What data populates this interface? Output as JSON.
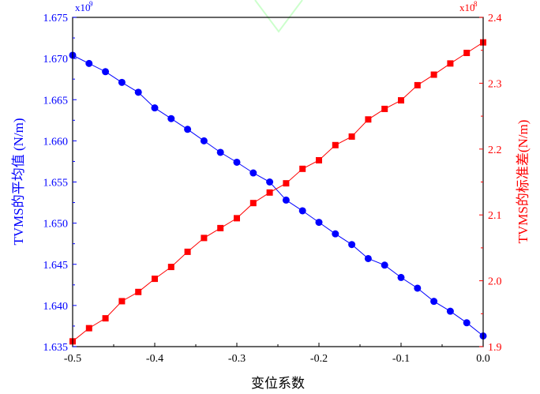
{
  "colors": {
    "left_series": "#0000ff",
    "right_series": "#ff0000",
    "frame": "#000000",
    "background_shape": "#ccffcc"
  },
  "chart_data": {
    "type": "scatter",
    "x": [
      -0.5,
      -0.48,
      -0.46,
      -0.44,
      -0.42,
      -0.4,
      -0.38,
      -0.36,
      -0.34,
      -0.32,
      -0.3,
      -0.28,
      -0.26,
      -0.24,
      -0.22,
      -0.2,
      -0.18,
      -0.16,
      -0.14,
      -0.12,
      -0.1,
      -0.08,
      -0.06,
      -0.04,
      -0.02,
      0.0
    ],
    "xlabel": "变位系数",
    "xlim": [
      -0.5,
      0.0
    ],
    "x_ticks": [
      "-0.5",
      "-0.4",
      "-0.3",
      "-0.2",
      "-0.1",
      "0.0"
    ],
    "y_left": {
      "label": "TVMS的平均值 (N/m)",
      "multiplier": "x10",
      "multiplier_exp": "9",
      "lim": [
        1.635,
        1.675
      ],
      "ticks": [
        "1.635",
        "1.640",
        "1.645",
        "1.650",
        "1.655",
        "1.660",
        "1.665",
        "1.670",
        "1.675"
      ]
    },
    "y_right": {
      "label": "TVMS的标准差(N/m)",
      "multiplier": "x10",
      "multiplier_exp": "8",
      "lim": [
        1.9,
        2.4
      ],
      "ticks": [
        "1.9",
        "2.0",
        "2.1",
        "2.2",
        "2.3",
        "2.4"
      ]
    },
    "series": [
      {
        "axis": "left",
        "marker": "circle",
        "color": "#0000ff",
        "values": [
          1.6704,
          1.6694,
          1.6684,
          1.6671,
          1.6659,
          1.664,
          1.6627,
          1.6614,
          1.66,
          1.6586,
          1.6574,
          1.6561,
          1.655,
          1.6528,
          1.6515,
          1.6501,
          1.6487,
          1.6474,
          1.6457,
          1.6449,
          1.6434,
          1.6421,
          1.6405,
          1.6393,
          1.6379,
          1.6363
        ]
      },
      {
        "axis": "right",
        "marker": "square",
        "color": "#ff0000",
        "values": [
          1.908,
          1.928,
          1.943,
          1.969,
          1.983,
          2.003,
          2.021,
          2.044,
          2.065,
          2.08,
          2.095,
          2.118,
          2.134,
          2.148,
          2.17,
          2.183,
          2.206,
          2.219,
          2.245,
          2.261,
          2.274,
          2.297,
          2.313,
          2.33,
          2.346,
          2.362
        ]
      }
    ]
  }
}
